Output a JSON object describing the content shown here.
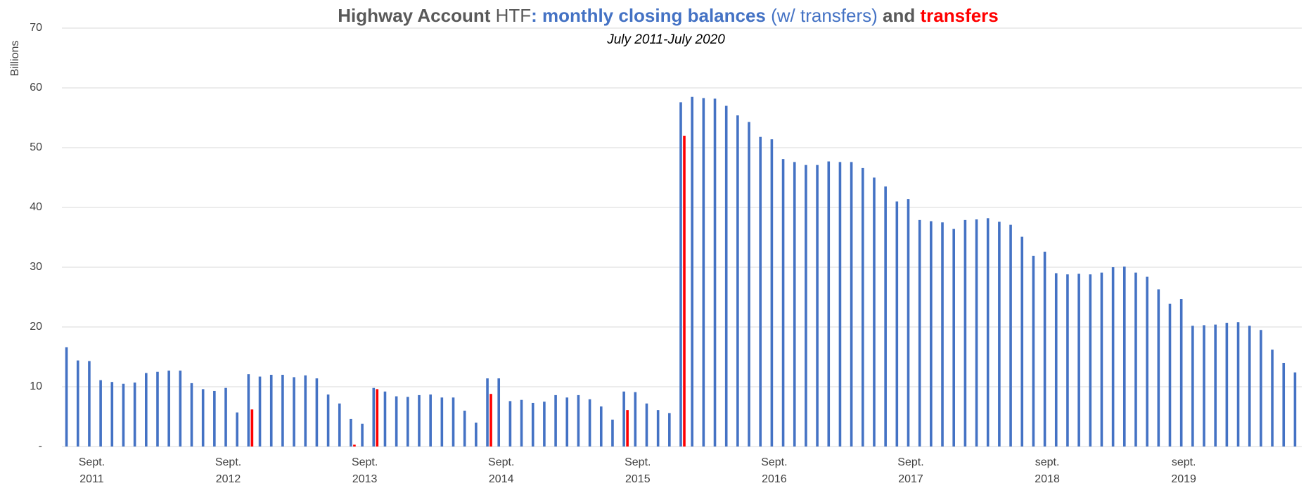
{
  "chart_data": {
    "type": "bar",
    "title": [
      "Highway Account",
      " HTF",
      ": monthly closing balances",
      " (w/ transfers)",
      " and ",
      "transfers"
    ],
    "subtitle": "July 2011-July 2020",
    "y_label": "Billions",
    "categories": [
      null,
      null,
      [
        "Sept.",
        "2011"
      ],
      null,
      null,
      null,
      null,
      null,
      null,
      null,
      null,
      null,
      null,
      null,
      [
        "Sept.",
        "2012"
      ],
      null,
      null,
      null,
      null,
      null,
      null,
      null,
      null,
      null,
      null,
      null,
      [
        "Sept.",
        "2013"
      ],
      null,
      null,
      null,
      null,
      null,
      null,
      null,
      null,
      null,
      null,
      null,
      [
        "Sept.",
        "2014"
      ],
      null,
      null,
      null,
      null,
      null,
      null,
      null,
      null,
      null,
      null,
      null,
      [
        "Sept.",
        "2015"
      ],
      null,
      null,
      null,
      null,
      null,
      null,
      null,
      null,
      null,
      null,
      null,
      [
        "Sept.",
        "2016"
      ],
      null,
      null,
      null,
      null,
      null,
      null,
      null,
      null,
      null,
      null,
      null,
      [
        "Sept.",
        "2017"
      ],
      null,
      null,
      null,
      null,
      null,
      null,
      null,
      null,
      null,
      null,
      null,
      [
        "sept.",
        "2018"
      ],
      null,
      null,
      null,
      null,
      null,
      null,
      null,
      null,
      null,
      null,
      null,
      [
        "sept.",
        "2019"
      ],
      null,
      null,
      null,
      null,
      null,
      null,
      null,
      null,
      null,
      null
    ],
    "series": [
      {
        "color": "#4472c4",
        "values": [
          16.6,
          14.4,
          14.3,
          11.1,
          10.8,
          10.5,
          10.7,
          12.3,
          12.5,
          12.7,
          12.7,
          10.6,
          9.6,
          9.3,
          9.8,
          5.7,
          12.1,
          11.7,
          12.0,
          12.0,
          11.6,
          11.9,
          11.4,
          8.7,
          7.2,
          4.6,
          3.8,
          9.8,
          9.2,
          8.4,
          8.3,
          8.6,
          8.7,
          8.2,
          8.2,
          6.0,
          4.0,
          11.4,
          11.4,
          7.6,
          7.8,
          7.3,
          7.5,
          8.6,
          8.2,
          8.6,
          7.9,
          6.7,
          4.5,
          9.2,
          9.1,
          7.2,
          6.1,
          5.6,
          57.6,
          58.5,
          58.3,
          58.2,
          57.0,
          55.4,
          54.3,
          51.8,
          51.4,
          48.1,
          47.6,
          47.1,
          47.1,
          47.7,
          47.6,
          47.6,
          46.6,
          45.0,
          43.5,
          41.0,
          41.4,
          37.9,
          37.7,
          37.5,
          36.4,
          37.9,
          38.0,
          38.2,
          37.6,
          37.1,
          35.1,
          31.9,
          32.6,
          29.0,
          28.8,
          28.9,
          28.8,
          29.1,
          30.0,
          30.1,
          29.1,
          28.4,
          26.3,
          23.9,
          24.7,
          20.2,
          20.3,
          20.4,
          20.7,
          20.8,
          20.2,
          19.5,
          16.2,
          14.0,
          12.4
        ]
      },
      {
        "color": "#ff0000",
        "values": [
          null,
          null,
          null,
          null,
          null,
          null,
          null,
          null,
          null,
          null,
          null,
          null,
          null,
          null,
          null,
          null,
          6.2,
          null,
          null,
          null,
          null,
          null,
          null,
          null,
          null,
          0.3,
          null,
          9.6,
          null,
          null,
          null,
          null,
          null,
          null,
          null,
          null,
          null,
          8.8,
          null,
          null,
          null,
          null,
          null,
          null,
          null,
          null,
          null,
          null,
          null,
          6.1,
          null,
          null,
          null,
          null,
          52.0,
          null,
          null,
          null,
          null,
          null,
          null,
          null,
          null,
          null,
          null,
          null,
          null,
          null,
          null,
          null,
          null,
          null,
          null,
          null,
          null,
          null,
          null,
          null,
          null,
          null,
          null,
          null,
          null,
          null,
          null,
          null,
          null,
          null,
          null,
          null,
          null,
          null,
          null,
          null,
          null,
          null,
          null,
          null,
          null,
          null,
          null,
          null,
          null,
          null,
          null,
          null,
          null,
          null,
          null
        ]
      }
    ],
    "ylim": [
      0,
      70
    ],
    "yticks": [
      {
        "value": 0,
        "label": "-"
      },
      10,
      20,
      30,
      40,
      50,
      60,
      70
    ],
    "grid": true
  }
}
